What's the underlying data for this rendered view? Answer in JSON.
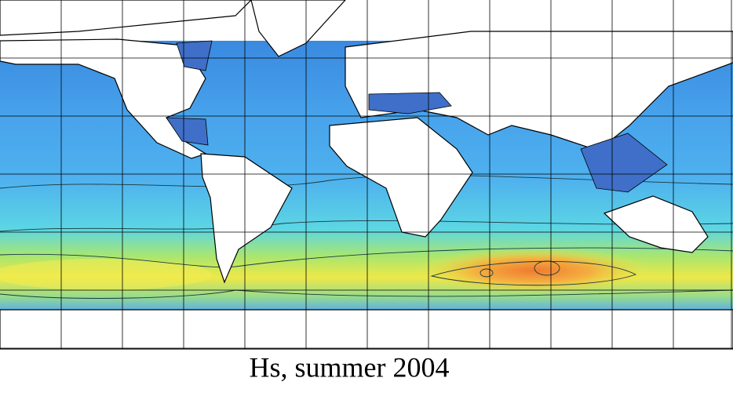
{
  "caption": "Hs, summer 2004"
}
